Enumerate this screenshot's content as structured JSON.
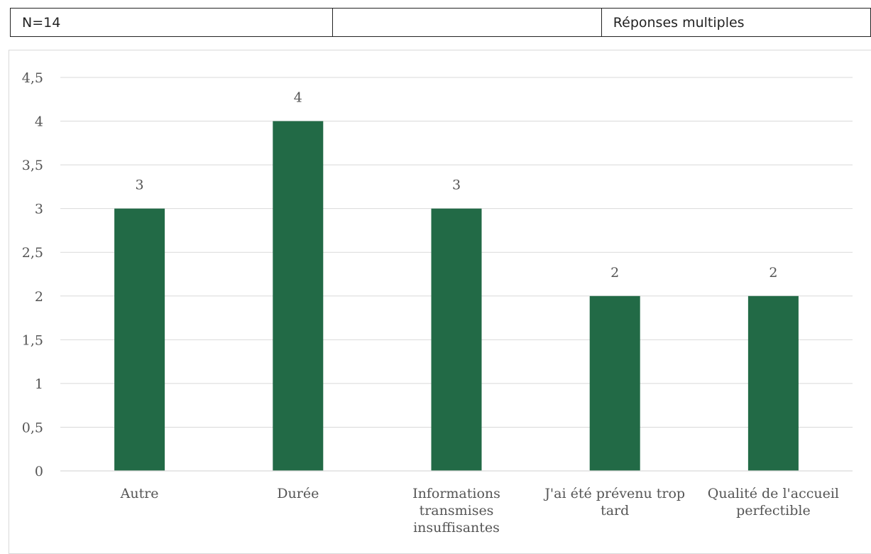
{
  "header": {
    "cells": [
      "N=14",
      "",
      "Réponses multiples"
    ]
  },
  "chart_data": {
    "type": "bar",
    "categories": [
      [
        "Autre"
      ],
      [
        "Durée"
      ],
      [
        "Informations",
        "transmises",
        "insuffisantes"
      ],
      [
        "J'ai été prévenu trop",
        "tard"
      ],
      [
        "Qualité de l'accueil",
        "perfectible"
      ]
    ],
    "values": [
      3,
      4,
      3,
      2,
      2
    ],
    "data_labels": [
      "3",
      "4",
      "3",
      "2",
      "2"
    ],
    "y_ticks": [
      "0",
      "0,5",
      "1",
      "1,5",
      "2",
      "2,5",
      "3",
      "3,5",
      "4",
      "4,5"
    ],
    "ylim": [
      0,
      4.5
    ],
    "grid": true,
    "bar_color": "#226a46",
    "gridline_color": "#d9d9d9",
    "title": "",
    "xlabel": "",
    "ylabel": ""
  }
}
